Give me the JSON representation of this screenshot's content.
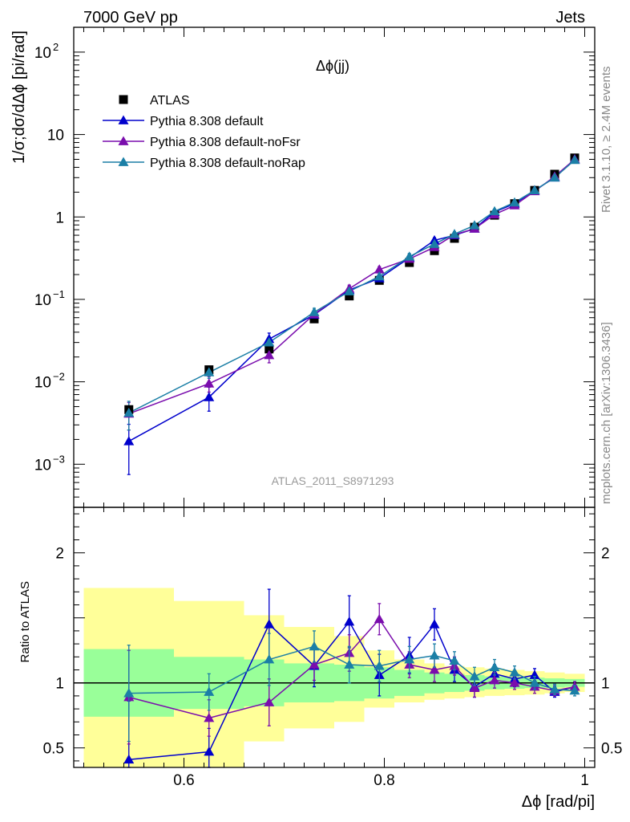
{
  "header": {
    "left": "7000 GeV pp",
    "right": "Jets"
  },
  "side": {
    "rivet": "Rivet 3.1.10, ≥ 2.4M events",
    "mcplots": "mcplots.cern.ch [arXiv:1306.3436]"
  },
  "colors": {
    "atlas": "#000000",
    "default": "#0000cc",
    "noFsr": "#7a0dad",
    "noRap": "#1b7fa6",
    "band_inner": "#99ff99",
    "band_outer": "#ffff99"
  },
  "chart_data": [
    {
      "type": "line",
      "title": "Δϕ(jj)",
      "ylabel": "1/σ;dσ/dΔϕ [pi/rad]",
      "xlabel": "",
      "yscale": "log",
      "xlim": [
        0.49,
        1.01
      ],
      "ylim": [
        0.0003,
        200
      ],
      "yticks": [
        {
          "v": 0.001,
          "base": "10",
          "exp": "−3"
        },
        {
          "v": 0.01,
          "base": "10",
          "exp": "−2"
        },
        {
          "v": 0.1,
          "base": "10",
          "exp": "−1"
        },
        {
          "v": 1,
          "base": "1",
          "exp": ""
        },
        {
          "v": 10,
          "base": "10",
          "exp": ""
        },
        {
          "v": 100,
          "base": "10",
          "exp": "2"
        }
      ],
      "legend_position": "top-left",
      "watermark": "ATLAS_2011_S8971293",
      "series": [
        {
          "name": "ATLAS",
          "marker": "square",
          "x": [
            0.545,
            0.625,
            0.685,
            0.73,
            0.765,
            0.795,
            0.825,
            0.85,
            0.87,
            0.89,
            0.91,
            0.93,
            0.95,
            0.97,
            0.99
          ],
          "y": [
            0.0046,
            0.014,
            0.025,
            0.058,
            0.11,
            0.17,
            0.28,
            0.39,
            0.55,
            0.75,
            1.05,
            1.45,
            2.1,
            3.3,
            5.2
          ]
        },
        {
          "name": "Pythia 8.308 default",
          "marker": "triangle",
          "x": [
            0.545,
            0.625,
            0.685,
            0.73,
            0.765,
            0.795,
            0.825,
            0.85,
            0.87,
            0.89,
            0.91,
            0.93,
            0.95,
            0.97,
            0.99
          ],
          "y": [
            0.0019,
            0.0065,
            0.033,
            0.065,
            0.13,
            0.18,
            0.32,
            0.52,
            0.6,
            0.72,
            1.15,
            1.45,
            2.1,
            3.0,
            5.0
          ],
          "err": [
            0.00115,
            0.0021,
            0.006,
            0.008,
            0.015,
            0.02,
            0.03,
            0.04,
            0.04,
            0.05,
            0.07,
            0.08,
            0.1,
            0.14,
            0.2
          ]
        },
        {
          "name": "Pythia 8.308 default-noFsr",
          "marker": "triangle",
          "x": [
            0.545,
            0.625,
            0.685,
            0.73,
            0.765,
            0.795,
            0.825,
            0.85,
            0.87,
            0.89,
            0.91,
            0.93,
            0.95,
            0.97,
            0.99
          ],
          "y": [
            0.0041,
            0.0095,
            0.021,
            0.066,
            0.135,
            0.23,
            0.31,
            0.43,
            0.61,
            0.72,
            1.07,
            1.38,
            2.05,
            3.1,
            5.0
          ],
          "err": [
            0.0015,
            0.002,
            0.004,
            0.007,
            0.014,
            0.02,
            0.03,
            0.035,
            0.04,
            0.05,
            0.06,
            0.07,
            0.1,
            0.14,
            0.2
          ]
        },
        {
          "name": "Pythia 8.308 default-noRap",
          "marker": "triangle",
          "x": [
            0.545,
            0.625,
            0.685,
            0.73,
            0.765,
            0.795,
            0.825,
            0.85,
            0.87,
            0.89,
            0.91,
            0.93,
            0.95,
            0.97,
            0.99
          ],
          "y": [
            0.0042,
            0.013,
            0.03,
            0.07,
            0.125,
            0.19,
            0.33,
            0.47,
            0.62,
            0.79,
            1.17,
            1.5,
            2.1,
            3.0,
            4.9
          ],
          "err": [
            0.0016,
            0.002,
            0.005,
            0.008,
            0.014,
            0.02,
            0.03,
            0.04,
            0.04,
            0.05,
            0.07,
            0.08,
            0.1,
            0.14,
            0.2
          ]
        }
      ]
    },
    {
      "type": "line",
      "title": "",
      "ylabel": "Ratio to ATLAS",
      "xlabel": "Δϕ [rad/pi]",
      "xlim": [
        0.49,
        1.01
      ],
      "ylim": [
        0.35,
        2.35
      ],
      "xticks": [
        {
          "v": 0.6,
          "label": "0.6"
        },
        {
          "v": 0.8,
          "label": "0.8"
        },
        {
          "v": 1.0,
          "label": "1"
        }
      ],
      "yticks": [
        {
          "v": 0.5,
          "label": "0.5"
        },
        {
          "v": 1,
          "label": "1"
        },
        {
          "v": 2,
          "label": "2"
        }
      ],
      "bands": {
        "edges": [
          0.5,
          0.59,
          0.66,
          0.7,
          0.75,
          0.78,
          0.81,
          0.84,
          0.86,
          0.88,
          0.9,
          0.92,
          0.94,
          0.96,
          0.98,
          1.0
        ],
        "inner_lo": [
          0.74,
          0.8,
          0.82,
          0.85,
          0.86,
          0.88,
          0.9,
          0.92,
          0.93,
          0.94,
          0.95,
          0.955,
          0.96,
          0.965,
          0.97
        ],
        "inner_hi": [
          1.26,
          1.2,
          1.18,
          1.15,
          1.14,
          1.12,
          1.1,
          1.08,
          1.07,
          1.06,
          1.05,
          1.045,
          1.04,
          1.035,
          1.03
        ],
        "outer_lo": [
          0.2,
          0.2,
          0.55,
          0.65,
          0.7,
          0.81,
          0.85,
          0.87,
          0.88,
          0.89,
          0.9,
          0.905,
          0.91,
          0.92,
          0.93
        ],
        "outer_hi": [
          1.73,
          1.63,
          1.52,
          1.43,
          1.36,
          1.25,
          1.18,
          1.15,
          1.13,
          1.12,
          1.11,
          1.1,
          1.09,
          1.08,
          1.07
        ]
      },
      "series": [
        {
          "name": "Pythia 8.308 default",
          "x": [
            0.545,
            0.625,
            0.685,
            0.73,
            0.765,
            0.795,
            0.825,
            0.85,
            0.87,
            0.89,
            0.91,
            0.93,
            0.95,
            0.97,
            0.99
          ],
          "y": [
            0.41,
            0.47,
            1.45,
            1.13,
            1.47,
            1.06,
            1.21,
            1.45,
            1.1,
            0.97,
            1.07,
            1.03,
            1.06,
            0.93,
            0.97
          ],
          "err": [
            0.45,
            0.18,
            0.27,
            0.16,
            0.2,
            0.16,
            0.14,
            0.12,
            0.09,
            0.08,
            0.07,
            0.06,
            0.05,
            0.04,
            0.04
          ]
        },
        {
          "name": "Pythia 8.308 default-noFsr",
          "x": [
            0.545,
            0.625,
            0.685,
            0.73,
            0.765,
            0.795,
            0.825,
            0.85,
            0.87,
            0.89,
            0.91,
            0.93,
            0.95,
            0.97,
            0.99
          ],
          "y": [
            0.89,
            0.73,
            0.85,
            1.14,
            1.23,
            1.49,
            1.14,
            1.1,
            1.13,
            0.96,
            1.02,
            1.0,
            0.97,
            0.94,
            0.97
          ],
          "err": [
            0.36,
            0.14,
            0.18,
            0.12,
            0.14,
            0.12,
            0.1,
            0.09,
            0.07,
            0.07,
            0.06,
            0.05,
            0.05,
            0.04,
            0.04
          ]
        },
        {
          "name": "Pythia 8.308 default-noRap",
          "x": [
            0.545,
            0.625,
            0.685,
            0.73,
            0.765,
            0.795,
            0.825,
            0.85,
            0.87,
            0.89,
            0.91,
            0.93,
            0.95,
            0.97,
            0.99
          ],
          "y": [
            0.92,
            0.93,
            1.18,
            1.28,
            1.14,
            1.13,
            1.18,
            1.21,
            1.17,
            1.05,
            1.12,
            1.08,
            1.0,
            0.95,
            0.94
          ],
          "err": [
            0.37,
            0.14,
            0.2,
            0.12,
            0.14,
            0.12,
            0.1,
            0.09,
            0.07,
            0.07,
            0.06,
            0.05,
            0.05,
            0.04,
            0.04
          ]
        }
      ]
    }
  ]
}
